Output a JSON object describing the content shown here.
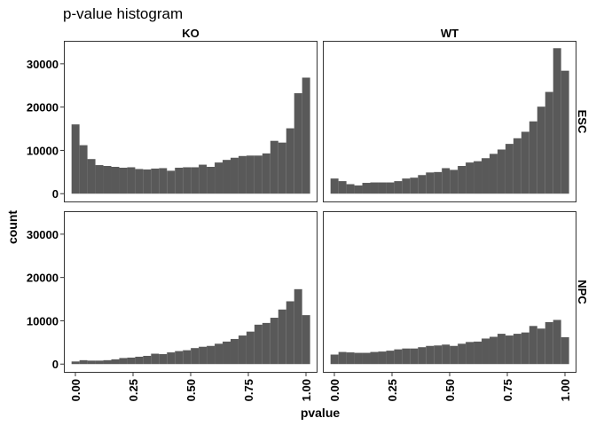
{
  "chart_data": {
    "type": "bar",
    "title": "p-value histogram",
    "xlabel": "pvalue",
    "ylabel": "count",
    "x_range": [
      -0.05,
      1.05
    ],
    "y_range": [
      -2000,
      35300
    ],
    "x_ticks": [
      "0.00",
      "0.25",
      "0.50",
      "0.75",
      "1.00"
    ],
    "x_tick_values": [
      0,
      0.25,
      0.5,
      0.75,
      1.0
    ],
    "y_ticks": [
      "0",
      "10000",
      "20000",
      "30000"
    ],
    "y_tick_values": [
      0,
      10000,
      20000,
      30000
    ],
    "bin_width": 0.0333,
    "bin_centers_first_last": [
      0.0,
      1.0
    ],
    "columns": [
      "KO",
      "WT"
    ],
    "rows": [
      "ESC",
      "NPC"
    ],
    "bar_color": "#595959",
    "grid": false,
    "panels": [
      {
        "column": "KO",
        "row": "ESC",
        "values": [
          16000,
          11200,
          8000,
          6600,
          6400,
          6200,
          6000,
          6100,
          5700,
          5600,
          5800,
          5900,
          5300,
          6000,
          6100,
          6100,
          6700,
          6200,
          7200,
          7800,
          8300,
          8700,
          8800,
          8800,
          9300,
          12200,
          11800,
          15100,
          23200,
          26800
        ]
      },
      {
        "column": "WT",
        "row": "ESC",
        "values": [
          3500,
          2900,
          2200,
          1900,
          2500,
          2600,
          2600,
          2600,
          2900,
          3500,
          3700,
          4300,
          4900,
          5000,
          5900,
          5500,
          6400,
          7200,
          7500,
          8200,
          9200,
          10200,
          11500,
          12800,
          14300,
          16700,
          20100,
          23500,
          33600,
          28400
        ]
      },
      {
        "column": "KO",
        "row": "NPC",
        "values": [
          600,
          900,
          800,
          800,
          900,
          1100,
          1400,
          1500,
          1700,
          1900,
          2400,
          2300,
          2700,
          3000,
          3200,
          3700,
          4000,
          4200,
          4700,
          5200,
          5800,
          6600,
          7500,
          9100,
          9500,
          10700,
          12600,
          14500,
          17300,
          11300
        ]
      },
      {
        "column": "WT",
        "row": "NPC",
        "values": [
          2200,
          2800,
          2700,
          2600,
          2600,
          2800,
          2900,
          3100,
          3400,
          3600,
          3600,
          3900,
          4200,
          4300,
          4500,
          4200,
          4700,
          5100,
          5200,
          5900,
          6300,
          7000,
          6600,
          7000,
          7300,
          8800,
          8200,
          9700,
          10200,
          6200
        ]
      }
    ]
  }
}
